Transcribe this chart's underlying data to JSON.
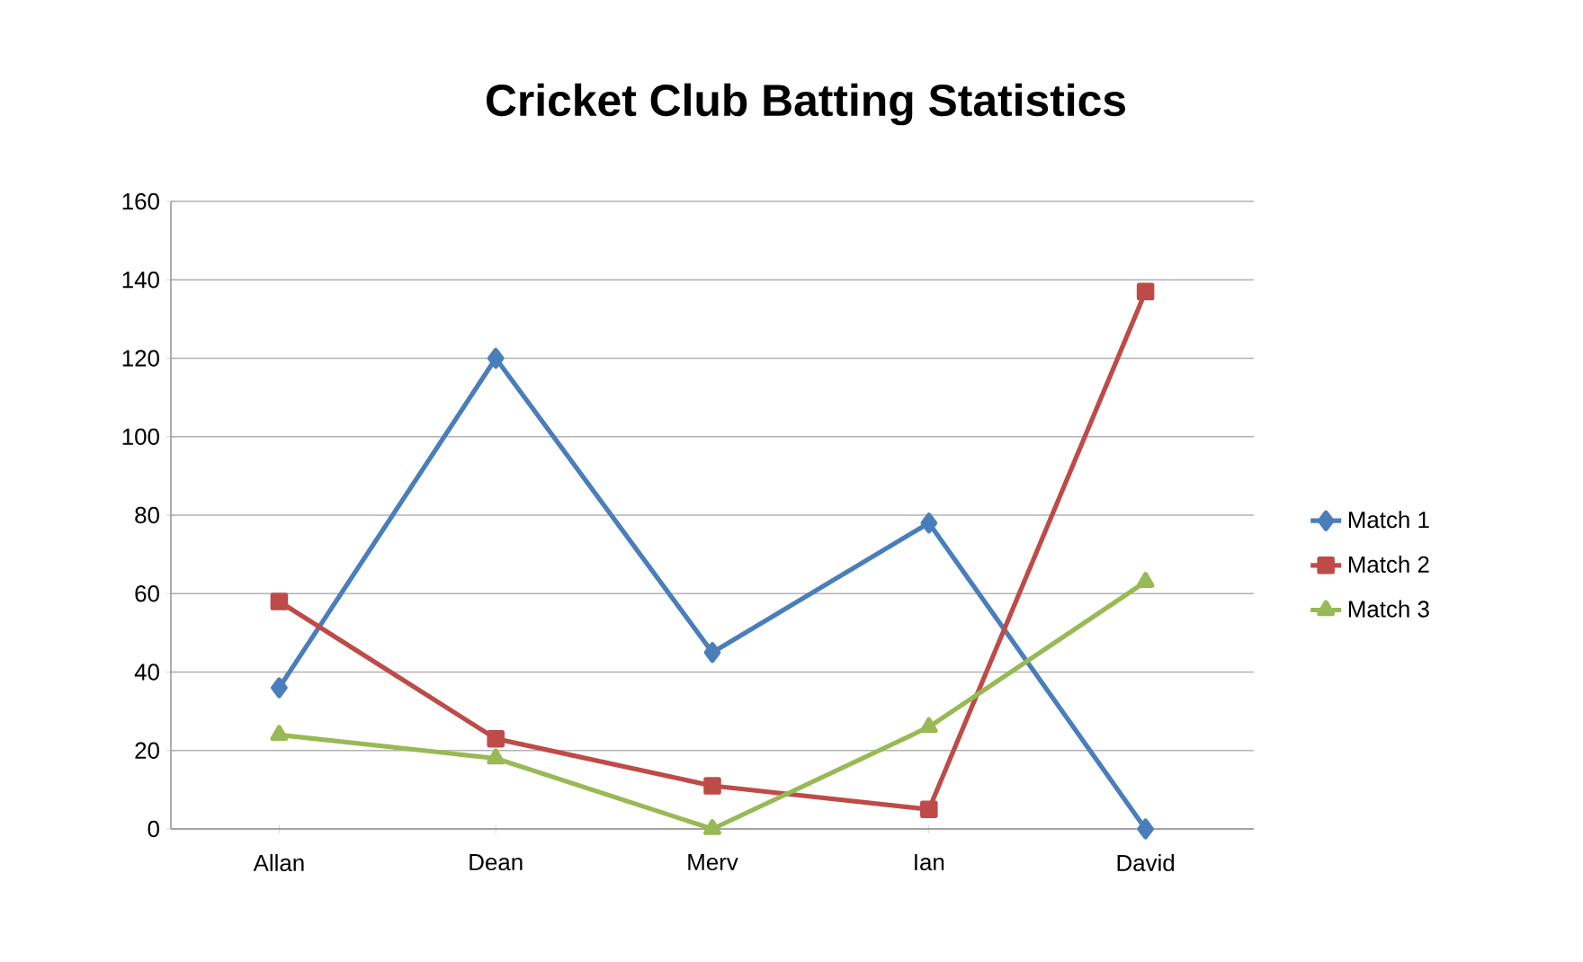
{
  "chart_data": {
    "type": "line",
    "title": "Cricket Club Batting Statistics",
    "categories": [
      "Allan",
      "Dean",
      "Merv",
      "Ian",
      "David"
    ],
    "series": [
      {
        "name": "Match 1",
        "color": "#4a7ebb",
        "marker": "diamond",
        "values": [
          36,
          120,
          45,
          78,
          0
        ]
      },
      {
        "name": "Match 2",
        "color": "#be4b48",
        "marker": "square",
        "values": [
          58,
          23,
          11,
          5,
          137
        ]
      },
      {
        "name": "Match 3",
        "color": "#98b954",
        "marker": "triangle",
        "values": [
          24,
          18,
          0,
          26,
          63
        ]
      }
    ],
    "ylim": [
      0,
      160
    ],
    "yticks": [
      0,
      20,
      40,
      60,
      80,
      100,
      120,
      140,
      160
    ],
    "grid": "y",
    "legend": "right",
    "line_style": "solid"
  }
}
